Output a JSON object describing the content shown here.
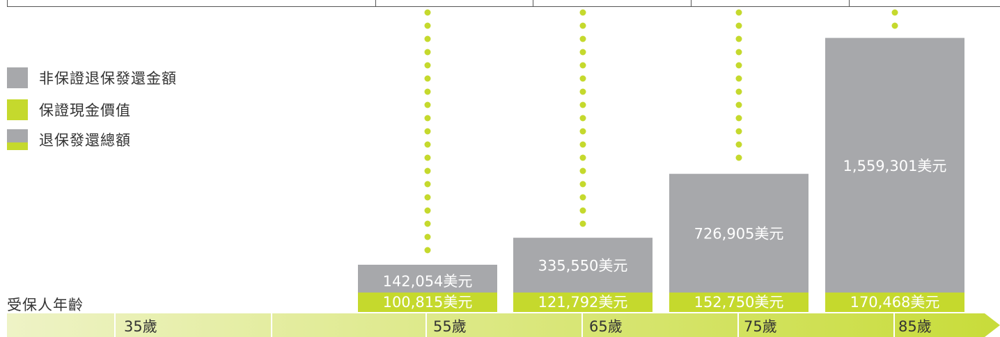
{
  "legend": {
    "non_guaranteed": "非保證退保發還金額",
    "guaranteed": "保證現金價值",
    "total": "退保發還總額"
  },
  "axis_title": "受保人年齡",
  "ages": [
    "35歲",
    "55歲",
    "65歲",
    "75歲",
    "85歲"
  ],
  "colors": {
    "non_guaranteed": "#a7a8ab",
    "guaranteed": "#c5d92d",
    "dots": "#c5d92d",
    "band_light": "#eef3c6",
    "band_dark": "#c8dc3a"
  },
  "chart_data": {
    "type": "bar",
    "stacked": true,
    "xlabel": "受保人年齡",
    "categories": [
      "55歲",
      "65歲",
      "75歲",
      "85歲"
    ],
    "series": [
      {
        "name": "保證現金價值",
        "values": [
          100815,
          121792,
          152750,
          170468
        ],
        "labels": [
          "100,815美元",
          "121,792美元",
          "152,750美元",
          "170,468美元"
        ]
      },
      {
        "name": "非保證退保發還金額",
        "values": [
          142054,
          335550,
          726905,
          1559301
        ],
        "labels": [
          "142,054美元",
          "335,550美元",
          "726,905美元",
          "1,559,301美元"
        ]
      }
    ]
  }
}
